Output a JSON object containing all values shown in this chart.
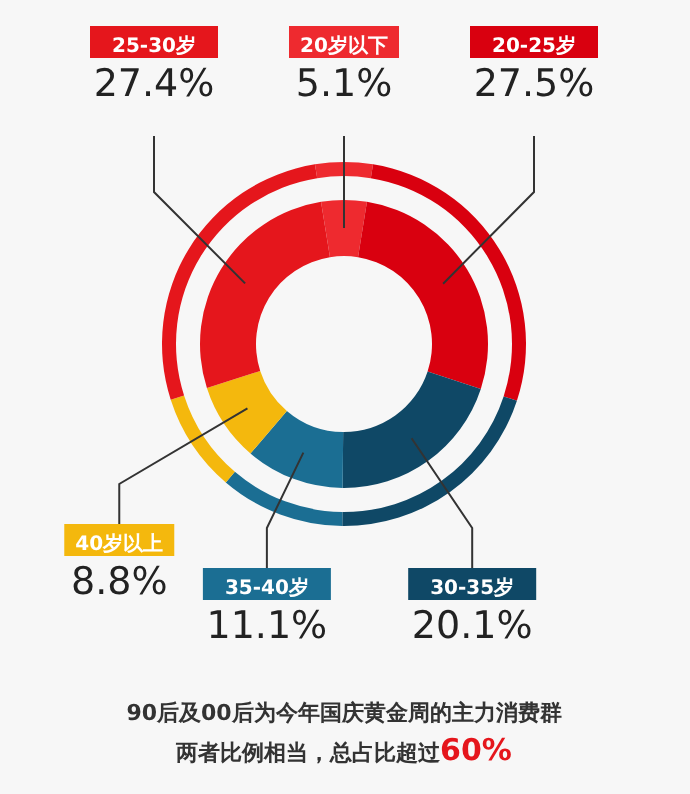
{
  "chart_data": {
    "type": "donut",
    "categories": [
      "20岁以下",
      "20-25岁",
      "30-35岁",
      "35-40岁",
      "40岁以上",
      "25-30岁"
    ],
    "values": [
      5.1,
      27.5,
      20.1,
      11.1,
      8.8,
      27.4
    ],
    "value_labels": [
      "5.1%",
      "27.5%",
      "20.1%",
      "11.1%",
      "8.8%",
      "27.4%"
    ],
    "colors": [
      "#ee2a2f",
      "#d9000f",
      "#0f4866",
      "#1b6e93",
      "#f4b80d",
      "#e5161c"
    ],
    "annotations": [
      "90后及00后为今年国庆黄金周的主力消费群",
      "两者比例相当，总占比超过60%"
    ]
  }
}
